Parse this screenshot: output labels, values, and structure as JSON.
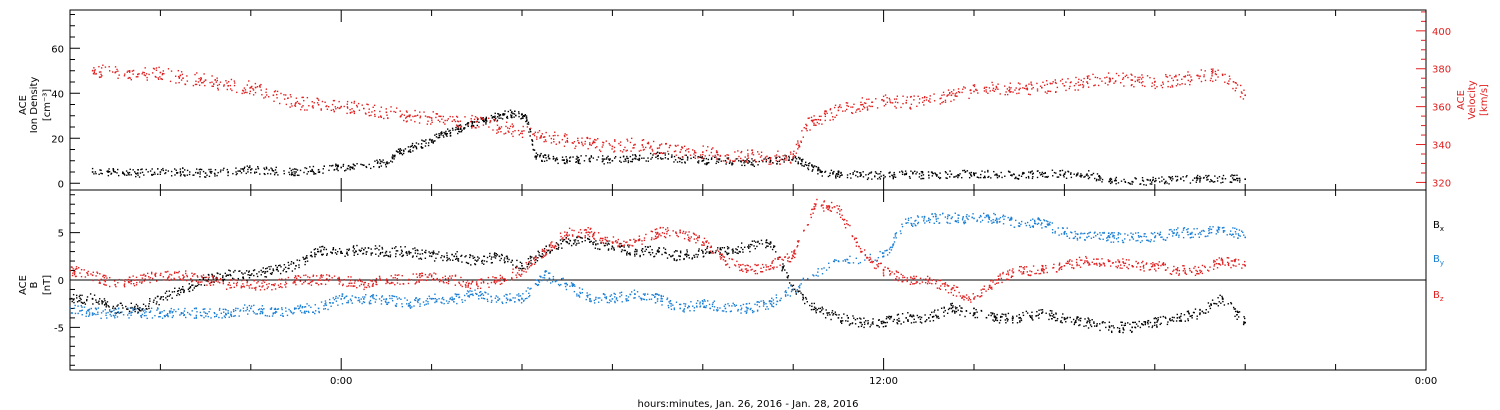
{
  "colors": {
    "black": "#000000",
    "red": "#e02020",
    "blue": "#1a7fd4"
  },
  "xaxis": {
    "label": "hours:minutes, Jan. 26, 2016 - Jan. 28, 2016",
    "range_hours": [
      -6,
      24
    ],
    "major_ticks": [
      {
        "hour": 0,
        "label": "0:00"
      },
      {
        "hour": 12,
        "label": "12:00"
      },
      {
        "hour": 24,
        "label": "0:00"
      }
    ],
    "minor_step_hours": 2
  },
  "chart_data": [
    {
      "type": "scatter",
      "title": "",
      "ylabel_left": [
        "ACE",
        "Ion Density",
        "[cm⁻³]"
      ],
      "ylabel_right": [
        "ACE",
        "Velocity",
        "[km/s]"
      ],
      "ylim_left": [
        -3,
        77
      ],
      "ylim_right": [
        316,
        411
      ],
      "left_ticks": [
        "0",
        "20",
        "40",
        "60"
      ],
      "right_ticks": [
        "320",
        "340",
        "360",
        "380",
        "400"
      ],
      "series": [
        {
          "color": "black",
          "axis": "left",
          "points": [
            [
              -5.5,
              5
            ],
            [
              -5,
              5
            ],
            [
              -4.5,
              4.5
            ],
            [
              -4,
              5
            ],
            [
              -3.5,
              5
            ],
            [
              -3,
              4.5
            ],
            [
              -2.5,
              5
            ],
            [
              -2,
              6
            ],
            [
              -1.5,
              5.5
            ],
            [
              -1,
              5
            ],
            [
              -0.5,
              6
            ],
            [
              0,
              7
            ],
            [
              0.5,
              8
            ],
            [
              1,
              9
            ],
            [
              1.3,
              14
            ],
            [
              1.6,
              16
            ],
            [
              2,
              19
            ],
            [
              2.3,
              22
            ],
            [
              2.6,
              24
            ],
            [
              2.9,
              27
            ],
            [
              3.2,
              28
            ],
            [
              3.5,
              30
            ],
            [
              3.8,
              31
            ],
            [
              4.1,
              29
            ],
            [
              4.3,
              12
            ],
            [
              4.6,
              11
            ],
            [
              5,
              10
            ],
            [
              5.5,
              11
            ],
            [
              6,
              10
            ],
            [
              6.5,
              11
            ],
            [
              7,
              12
            ],
            [
              7.5,
              11
            ],
            [
              8,
              10
            ],
            [
              8.5,
              10
            ],
            [
              9,
              9
            ],
            [
              9.5,
              10
            ],
            [
              10,
              11
            ],
            [
              10.3,
              8
            ],
            [
              10.6,
              5
            ],
            [
              11,
              4
            ],
            [
              11.5,
              3.5
            ],
            [
              12,
              3.5
            ],
            [
              12.5,
              4
            ],
            [
              13,
              3.5
            ],
            [
              13.5,
              4
            ],
            [
              14,
              4
            ],
            [
              14.5,
              4
            ],
            [
              15,
              3.5
            ],
            [
              15.5,
              4
            ],
            [
              16,
              4
            ],
            [
              16.5,
              4
            ],
            [
              17,
              0.8
            ],
            [
              17.5,
              0.7
            ],
            [
              18,
              0.8
            ],
            [
              18.5,
              1.5
            ],
            [
              19,
              2
            ],
            [
              19.5,
              2
            ],
            [
              20,
              1.8
            ]
          ]
        },
        {
          "color": "red",
          "axis": "right",
          "points": [
            [
              -5.5,
              379
            ],
            [
              -5,
              378
            ],
            [
              -4.5,
              377
            ],
            [
              -4,
              378
            ],
            [
              -3.5,
              375
            ],
            [
              -3,
              374
            ],
            [
              -2.5,
              371
            ],
            [
              -2,
              370
            ],
            [
              -1.5,
              366
            ],
            [
              -1,
              362
            ],
            [
              -0.5,
              361
            ],
            [
              0,
              360
            ],
            [
              0.5,
              359
            ],
            [
              1,
              357
            ],
            [
              1.5,
              355
            ],
            [
              2,
              354
            ],
            [
              2.5,
              353
            ],
            [
              3,
              352
            ],
            [
              3.5,
              349
            ],
            [
              4,
              347
            ],
            [
              4.5,
              344
            ],
            [
              5,
              342
            ],
            [
              5.5,
              340
            ],
            [
              6,
              339
            ],
            [
              6.5,
              340
            ],
            [
              7,
              338
            ],
            [
              7.5,
              336
            ],
            [
              8,
              336
            ],
            [
              8.5,
              334
            ],
            [
              9,
              334
            ],
            [
              9.5,
              333
            ],
            [
              10,
              333
            ],
            [
              10.3,
              350
            ],
            [
              10.6,
              353
            ],
            [
              11,
              358
            ],
            [
              11.5,
              361
            ],
            [
              12,
              363
            ],
            [
              12.5,
              362
            ],
            [
              13,
              363
            ],
            [
              13.5,
              366
            ],
            [
              14,
              368
            ],
            [
              14.5,
              370
            ],
            [
              15,
              369
            ],
            [
              15.5,
              370
            ],
            [
              16,
              371
            ],
            [
              16.5,
              373
            ],
            [
              17,
              375
            ],
            [
              17.5,
              374
            ],
            [
              18,
              373
            ],
            [
              18.5,
              374
            ],
            [
              19,
              376
            ],
            [
              19.5,
              377
            ],
            [
              20,
              366
            ]
          ]
        }
      ]
    },
    {
      "type": "scatter",
      "title": "",
      "ylabel_left": [
        "ACE",
        "B",
        "[nT]"
      ],
      "ylim": [
        -9.5,
        9.5
      ],
      "left_ticks": [
        "-5",
        "0",
        "5"
      ],
      "zero_line": true,
      "series": [
        {
          "name": "Bx",
          "color": "black",
          "points": [
            [
              -6,
              -2
            ],
            [
              -5.5,
              -2
            ],
            [
              -5,
              -3
            ],
            [
              -4.5,
              -3
            ],
            [
              -4,
              -2
            ],
            [
              -3.5,
              -1
            ],
            [
              -3,
              0
            ],
            [
              -2.5,
              0.5
            ],
            [
              -2,
              0.5
            ],
            [
              -1.5,
              1
            ],
            [
              -1,
              1.5
            ],
            [
              -0.5,
              3
            ],
            [
              0,
              3
            ],
            [
              0.5,
              3.2
            ],
            [
              1,
              3
            ],
            [
              1.5,
              3
            ],
            [
              2,
              2.5
            ],
            [
              2.5,
              2.5
            ],
            [
              3,
              2
            ],
            [
              3.5,
              2.5
            ],
            [
              4,
              1.5
            ],
            [
              4.5,
              3
            ],
            [
              5,
              4
            ],
            [
              5.5,
              4
            ],
            [
              6,
              3.5
            ],
            [
              6.5,
              3
            ],
            [
              7,
              3
            ],
            [
              7.5,
              2.5
            ],
            [
              8,
              3
            ],
            [
              8.5,
              3
            ],
            [
              9,
              3.5
            ],
            [
              9.5,
              4
            ],
            [
              10,
              -1
            ],
            [
              10.5,
              -3
            ],
            [
              11,
              -4
            ],
            [
              11.5,
              -4.5
            ],
            [
              12,
              -4.5
            ],
            [
              12.5,
              -4
            ],
            [
              13,
              -4
            ],
            [
              13.5,
              -3
            ],
            [
              14,
              -3.5
            ],
            [
              14.5,
              -4
            ],
            [
              15,
              -4
            ],
            [
              15.5,
              -3.5
            ],
            [
              16,
              -4
            ],
            [
              16.5,
              -4.5
            ],
            [
              17,
              -5
            ],
            [
              17.5,
              -5
            ],
            [
              18,
              -4.5
            ],
            [
              18.5,
              -4
            ],
            [
              19,
              -3.5
            ],
            [
              19.5,
              -2
            ],
            [
              20,
              -4.5
            ]
          ]
        },
        {
          "name": "By",
          "color": "blue",
          "points": [
            [
              -6,
              -3
            ],
            [
              -5.5,
              -3.5
            ],
            [
              -5,
              -3.5
            ],
            [
              -4.5,
              -3.5
            ],
            [
              -4,
              -3.5
            ],
            [
              -3.5,
              -3.5
            ],
            [
              -3,
              -3.5
            ],
            [
              -2.5,
              -3.5
            ],
            [
              -2,
              -3
            ],
            [
              -1.5,
              -3.5
            ],
            [
              -1,
              -3
            ],
            [
              -0.5,
              -3
            ],
            [
              0,
              -2
            ],
            [
              0.5,
              -2
            ],
            [
              1,
              -2
            ],
            [
              1.5,
              -2.5
            ],
            [
              2,
              -2
            ],
            [
              2.5,
              -2
            ],
            [
              3,
              -1.5
            ],
            [
              3.5,
              -2
            ],
            [
              4,
              -2
            ],
            [
              4.5,
              0.5
            ],
            [
              5,
              -0.5
            ],
            [
              5.5,
              -2
            ],
            [
              6,
              -2
            ],
            [
              6.5,
              -1.5
            ],
            [
              7,
              -2
            ],
            [
              7.5,
              -3
            ],
            [
              8,
              -2.5
            ],
            [
              8.5,
              -3
            ],
            [
              9,
              -3
            ],
            [
              9.5,
              -2.5
            ],
            [
              10,
              -1
            ],
            [
              11,
              2
            ],
            [
              12,
              2.5
            ],
            [
              12.5,
              6
            ],
            [
              13,
              6.5
            ],
            [
              13.5,
              6.5
            ],
            [
              14,
              6.5
            ],
            [
              14.5,
              6.5
            ],
            [
              15,
              6
            ],
            [
              15.5,
              6
            ],
            [
              16,
              5
            ],
            [
              16.5,
              4.5
            ],
            [
              17,
              4.5
            ],
            [
              17.5,
              4.5
            ],
            [
              18,
              4.5
            ],
            [
              18.5,
              5
            ],
            [
              19,
              5
            ],
            [
              19.5,
              5.5
            ],
            [
              20,
              4.5
            ]
          ]
        },
        {
          "name": "Bz",
          "color": "red",
          "points": [
            [
              -6,
              1
            ],
            [
              -5.5,
              0.5
            ],
            [
              -5,
              -0.5
            ],
            [
              -4.5,
              0
            ],
            [
              -4,
              0.5
            ],
            [
              -3.5,
              0.5
            ],
            [
              -3,
              0
            ],
            [
              -2.5,
              -0.5
            ],
            [
              -2,
              -0.5
            ],
            [
              -1.5,
              -0.5
            ],
            [
              -1,
              0
            ],
            [
              -0.5,
              0
            ],
            [
              0,
              0
            ],
            [
              0.5,
              -0.5
            ],
            [
              1,
              0
            ],
            [
              1.5,
              0
            ],
            [
              2,
              0.5
            ],
            [
              2.5,
              0
            ],
            [
              3,
              -0.5
            ],
            [
              3.5,
              0
            ],
            [
              4,
              1
            ],
            [
              4.5,
              3
            ],
            [
              5,
              5
            ],
            [
              5.5,
              5
            ],
            [
              6,
              4
            ],
            [
              6.5,
              4
            ],
            [
              7,
              5
            ],
            [
              7.5,
              5
            ],
            [
              8,
              4
            ],
            [
              8.5,
              2
            ],
            [
              9,
              1
            ],
            [
              9.5,
              1.5
            ],
            [
              10,
              2.5
            ],
            [
              10.5,
              8
            ],
            [
              11,
              7.5
            ],
            [
              11.5,
              3
            ],
            [
              12,
              1
            ],
            [
              12.5,
              0
            ],
            [
              13,
              0
            ],
            [
              13.5,
              -1
            ],
            [
              14,
              -2
            ],
            [
              14.5,
              0
            ],
            [
              15,
              1
            ],
            [
              15.5,
              1
            ],
            [
              16,
              1.5
            ],
            [
              16.5,
              2
            ],
            [
              17,
              2
            ],
            [
              17.5,
              1.5
            ],
            [
              18,
              1.5
            ],
            [
              18.5,
              1
            ],
            [
              19,
              1
            ],
            [
              19.5,
              2
            ],
            [
              20,
              1.5
            ]
          ]
        }
      ],
      "legend": [
        {
          "letter": "B",
          "sub": "x",
          "color": "black"
        },
        {
          "letter": "B",
          "sub": "y",
          "color": "blue"
        },
        {
          "letter": "B",
          "sub": "z",
          "color": "red"
        }
      ]
    }
  ]
}
